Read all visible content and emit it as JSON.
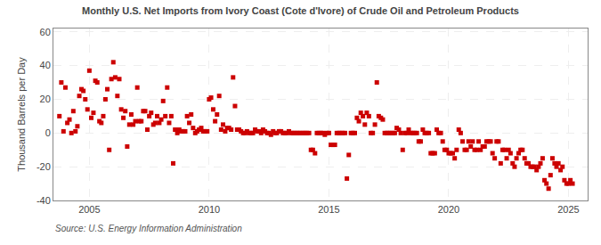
{
  "chart_data": {
    "type": "scatter",
    "title": "Monthly U.S. Net Imports from Ivory Coast (Cote d'Ivore) of Crude Oil and Petroleum Products",
    "ylabel": "Thousand Barrels per Day",
    "annotations": [
      "Source: U.S. Energy Information Administration"
    ],
    "color": "#cc0000",
    "marker": "square",
    "grid": true,
    "xlim": [
      2003.5,
      2025.8
    ],
    "ylim": [
      -40,
      62
    ],
    "xticks": [
      2005,
      2010,
      2015,
      2020,
      2025
    ],
    "yticks": [
      -40,
      -20,
      0,
      20,
      40,
      60
    ],
    "x": [
      2003.75,
      2003.83,
      2003.92,
      2004.0,
      2004.08,
      2004.17,
      2004.25,
      2004.33,
      2004.42,
      2004.5,
      2004.58,
      2004.67,
      2004.75,
      2004.83,
      2004.92,
      2005.0,
      2005.08,
      2005.17,
      2005.25,
      2005.33,
      2005.42,
      2005.5,
      2005.58,
      2005.67,
      2005.75,
      2005.83,
      2005.92,
      2006.0,
      2006.08,
      2006.17,
      2006.25,
      2006.33,
      2006.42,
      2006.5,
      2006.58,
      2006.67,
      2006.75,
      2006.83,
      2006.92,
      2007.0,
      2007.08,
      2007.17,
      2007.25,
      2007.33,
      2007.42,
      2007.5,
      2007.58,
      2007.67,
      2007.75,
      2007.83,
      2007.92,
      2008.0,
      2008.08,
      2008.17,
      2008.25,
      2008.33,
      2008.42,
      2008.5,
      2008.58,
      2008.67,
      2008.75,
      2008.83,
      2008.92,
      2009.0,
      2009.08,
      2009.17,
      2009.25,
      2009.33,
      2009.42,
      2009.5,
      2009.58,
      2009.67,
      2009.75,
      2009.83,
      2009.92,
      2010.0,
      2010.08,
      2010.17,
      2010.25,
      2010.33,
      2010.42,
      2010.5,
      2010.58,
      2010.67,
      2010.75,
      2010.83,
      2010.92,
      2011.0,
      2011.08,
      2011.17,
      2011.25,
      2011.33,
      2011.42,
      2011.5,
      2011.58,
      2011.67,
      2011.75,
      2011.83,
      2011.92,
      2012.0,
      2012.08,
      2012.17,
      2012.25,
      2012.33,
      2012.42,
      2012.5,
      2012.58,
      2012.67,
      2012.75,
      2012.83,
      2012.92,
      2013.0,
      2013.08,
      2013.17,
      2013.25,
      2013.33,
      2013.42,
      2013.5,
      2013.58,
      2013.67,
      2013.75,
      2013.83,
      2013.92,
      2014.0,
      2014.08,
      2014.17,
      2014.25,
      2014.33,
      2014.42,
      2014.5,
      2014.58,
      2014.67,
      2014.75,
      2014.83,
      2014.92,
      2015.0,
      2015.08,
      2015.17,
      2015.25,
      2015.33,
      2015.42,
      2015.5,
      2015.58,
      2015.67,
      2015.75,
      2015.83,
      2015.92,
      2016.0,
      2016.08,
      2016.17,
      2016.25,
      2016.33,
      2016.42,
      2016.5,
      2016.58,
      2016.67,
      2016.75,
      2016.83,
      2016.92,
      2017.0,
      2017.08,
      2017.17,
      2017.25,
      2017.33,
      2017.42,
      2017.5,
      2017.58,
      2017.67,
      2017.75,
      2017.83,
      2017.92,
      2018.0,
      2018.08,
      2018.17,
      2018.25,
      2018.33,
      2018.42,
      2018.5,
      2018.58,
      2018.67,
      2018.75,
      2018.83,
      2018.92,
      2019.0,
      2019.08,
      2019.17,
      2019.25,
      2019.33,
      2019.42,
      2019.5,
      2019.58,
      2019.67,
      2019.75,
      2019.83,
      2019.92,
      2020.0,
      2020.08,
      2020.17,
      2020.25,
      2020.33,
      2020.42,
      2020.5,
      2020.58,
      2020.67,
      2020.75,
      2020.83,
      2020.92,
      2021.0,
      2021.08,
      2021.17,
      2021.25,
      2021.33,
      2021.42,
      2021.5,
      2021.58,
      2021.67,
      2021.75,
      2021.83,
      2021.92,
      2022.0,
      2022.08,
      2022.17,
      2022.25,
      2022.33,
      2022.42,
      2022.5,
      2022.58,
      2022.67,
      2022.75,
      2022.83,
      2022.92,
      2023.0,
      2023.08,
      2023.17,
      2023.25,
      2023.33,
      2023.42,
      2023.5,
      2023.58,
      2023.67,
      2023.75,
      2023.83,
      2023.92,
      2024.0,
      2024.08,
      2024.17,
      2024.25,
      2024.33,
      2024.42,
      2024.5,
      2024.58,
      2024.67,
      2024.75,
      2024.83,
      2024.92,
      2025.0,
      2025.08,
      2025.17
    ],
    "values": [
      10,
      30,
      1,
      27,
      6,
      8,
      0,
      13,
      1,
      4,
      22,
      26,
      25,
      20,
      14,
      37,
      9,
      12,
      31,
      30,
      7,
      6,
      10,
      20,
      26,
      -10,
      32,
      42,
      33,
      22,
      32,
      14,
      9,
      13,
      -8,
      5,
      11,
      5,
      7,
      27,
      7,
      7,
      13,
      13,
      2,
      10,
      12,
      5,
      6,
      10,
      6,
      8,
      19,
      10,
      27,
      6,
      10,
      -18,
      2,
      0,
      2,
      1,
      1,
      1,
      10,
      6,
      11,
      3,
      0,
      1,
      2,
      3,
      1,
      1,
      1,
      20,
      21,
      14,
      7,
      11,
      22,
      2,
      5,
      1,
      3,
      3,
      2,
      33,
      16,
      2,
      2,
      1,
      0,
      0,
      1,
      0,
      0,
      0,
      2,
      1,
      1,
      0,
      2,
      1,
      0,
      0,
      -1,
      1,
      0,
      0,
      1,
      1,
      0,
      0,
      0,
      1,
      0,
      0,
      0,
      0,
      0,
      0,
      0,
      0,
      0,
      0,
      -10,
      -10,
      -12,
      0,
      0,
      0,
      0,
      -1,
      0,
      0,
      -7,
      -7,
      -7,
      0,
      0,
      0,
      0,
      0,
      -27,
      -13,
      0,
      0,
      0,
      9,
      7,
      12,
      10,
      5,
      12,
      10,
      0,
      0,
      5,
      30,
      10,
      9,
      8,
      0,
      0,
      0,
      0,
      0,
      0,
      3,
      2,
      0,
      -10,
      0,
      0,
      2,
      0,
      0,
      0,
      0,
      -5,
      -5,
      2,
      0,
      0,
      0,
      -12,
      -12,
      -12,
      2,
      0,
      0,
      -5,
      -10,
      -10,
      -12,
      -12,
      -12,
      -15,
      -10,
      2,
      0,
      -5,
      -10,
      -10,
      -5,
      -8,
      -5,
      -10,
      -10,
      -5,
      -10,
      -8,
      -8,
      -5,
      -5,
      -5,
      -12,
      -15,
      -5,
      -5,
      -18,
      -10,
      -10,
      -15,
      -10,
      -12,
      -18,
      -20,
      -15,
      -12,
      -10,
      -10,
      -15,
      -18,
      -18,
      -20,
      -20,
      -20,
      -22,
      -20,
      -18,
      -15,
      -28,
      -30,
      -33,
      -25,
      -15,
      -18,
      -20,
      -18,
      -22,
      -20,
      -28,
      -30,
      -30,
      -28,
      -30
    ]
  }
}
